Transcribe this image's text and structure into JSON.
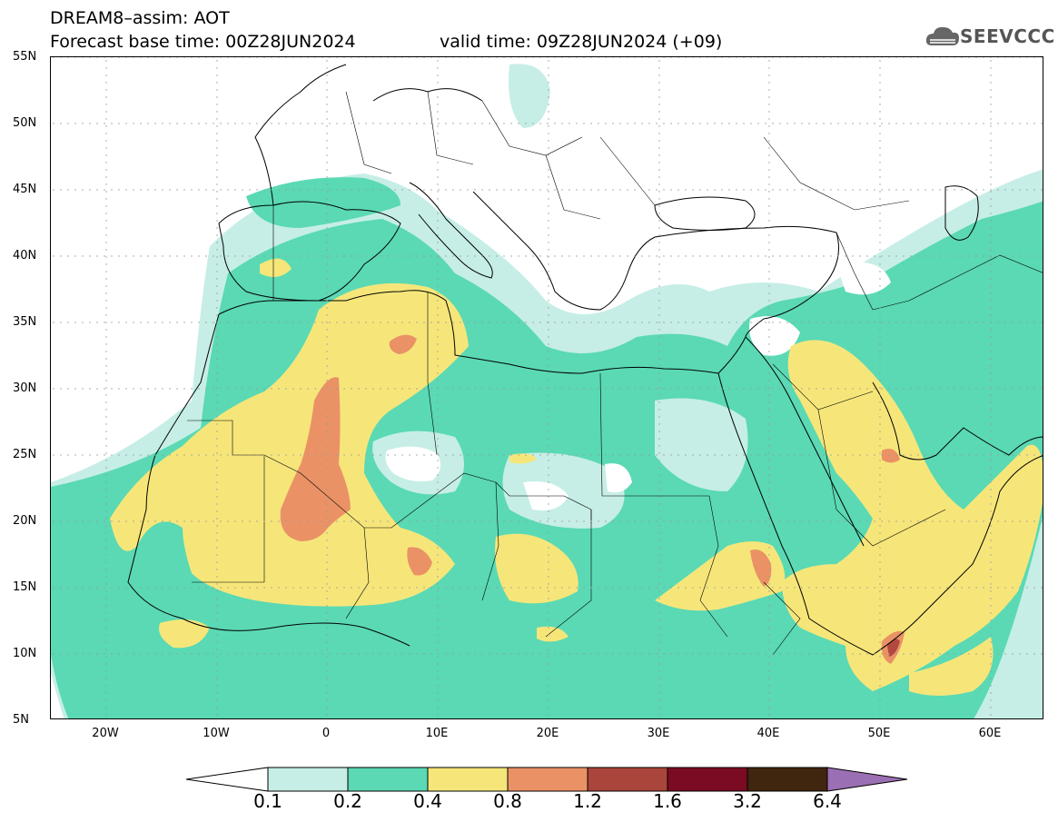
{
  "title": {
    "line1": "DREAM8–assim: AOT",
    "line2": "Forecast base time: 00Z28JUN2024",
    "valid_time": "valid time: 09Z28JUN2024 (+09)"
  },
  "logo": {
    "text": "SEEVCCC",
    "icon": "cloud-logo-icon"
  },
  "map": {
    "lat_labels": [
      "55N",
      "50N",
      "45N",
      "40N",
      "35N",
      "30N",
      "25N",
      "20N",
      "15N",
      "10N",
      "5N"
    ],
    "lon_labels": [
      "20W",
      "10W",
      "0",
      "10E",
      "20E",
      "30E",
      "40E",
      "50E",
      "60E"
    ],
    "field": "AOT"
  },
  "colorbar": {
    "labels": [
      "0.1",
      "0.2",
      "0.4",
      "0.8",
      "1.2",
      "1.6",
      "3.2",
      "6.4"
    ],
    "colors": [
      "#ffffff",
      "#c6eee6",
      "#5ad9b4",
      "#f6e67a",
      "#ea9266",
      "#a9453a",
      "#7b0b22",
      "#40250f",
      "#9b6fb4"
    ]
  },
  "palette": {
    "light": "#c6eee6",
    "green": "#5ad9b4",
    "yellow": "#f6e67a",
    "orange": "#ea9266",
    "red": "#c96a55",
    "dark": "#b2493f"
  }
}
